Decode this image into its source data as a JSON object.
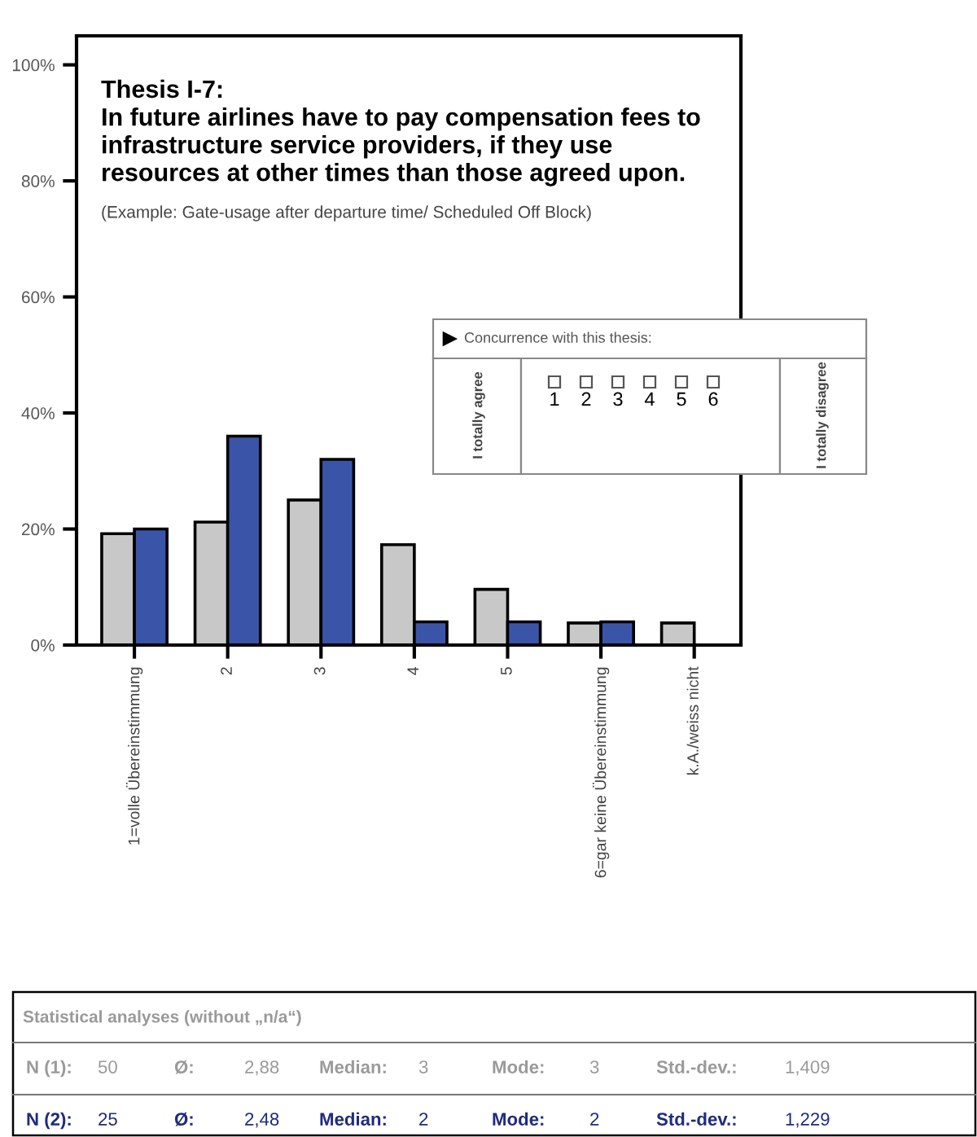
{
  "chart_data": {
    "type": "bar",
    "title": "Thesis I-7:",
    "subtitle": "In future airlines have to pay compensation fees to infrastructure service providers, if they use resources at other times than those agreed upon.",
    "categories": [
      "1=volle Übereinstimmung",
      "2",
      "3",
      "4",
      "5",
      "6=gar keine Übereinstimmung",
      "k.A./weiss nicht"
    ],
    "series": [
      {
        "color": "#c8c8c8",
        "values": [
          19.2,
          21.2,
          25,
          17.3,
          9.6,
          3.8,
          3.8
        ]
      },
      {
        "color": "#3a55a8",
        "values": [
          20,
          36,
          32,
          4,
          4,
          4,
          0
        ]
      }
    ],
    "ylim": [
      0,
      105
    ],
    "yticks": [
      {
        "value": 0,
        "label": "0%"
      },
      {
        "value": 20,
        "label": "20%"
      },
      {
        "value": 40,
        "label": "40%"
      },
      {
        "value": 60,
        "label": "60%"
      },
      {
        "value": 80,
        "label": "80%"
      },
      {
        "value": 100,
        "label": "100%"
      }
    ],
    "grid": false,
    "legend": false,
    "annotations": [
      "(Example: Gate-usage after departure time/ Scheduled Off Block)",
      "Concurrence with this thesis:",
      "I totally agree",
      "1",
      "2",
      "3",
      "4",
      "5",
      "6",
      "I totally disagree",
      "Statistical analyses (without „n/a“)",
      "N (1):  50  Ø:  2,88  Median:  3  Mode:  3  Std.-dev.:  1,409",
      "N (2):  25  Ø:  2,48  Median:  2  Mode:  2  Std.-dev.:  1,229"
    ]
  }
}
